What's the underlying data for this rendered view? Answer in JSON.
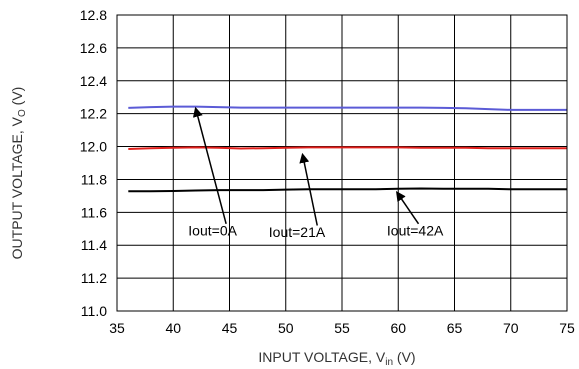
{
  "chart_data": {
    "type": "line",
    "xlabel": "INPUT VOLTAGE, V",
    "xlabel_sub": "in",
    "xlabel_unit": " (V)",
    "ylabel": "OUTPUT VOLTAGE, V",
    "ylabel_sub": "O",
    "ylabel_unit": " (V)",
    "xlim": [
      35,
      75
    ],
    "ylim": [
      11.0,
      12.8
    ],
    "xticks": [
      "35",
      "40",
      "45",
      "50",
      "55",
      "60",
      "65",
      "70",
      "75"
    ],
    "yticks": [
      "11.0",
      "11.2",
      "11.4",
      "11.6",
      "11.8",
      "12.0",
      "12.2",
      "12.4",
      "12.6",
      "12.8"
    ],
    "grid": true,
    "series": [
      {
        "name": "Iout=0A",
        "color": "#5b5bd6",
        "x": [
          36,
          38,
          40,
          42,
          44,
          46,
          48,
          50,
          52,
          54,
          56,
          58,
          60,
          62,
          64,
          66,
          68,
          70,
          72,
          75
        ],
        "y": [
          12.235,
          12.24,
          12.243,
          12.243,
          12.24,
          12.237,
          12.237,
          12.237,
          12.237,
          12.237,
          12.237,
          12.237,
          12.237,
          12.237,
          12.235,
          12.233,
          12.228,
          12.223,
          12.223,
          12.223
        ]
      },
      {
        "name": "Iout=21A",
        "color": "#e0201c",
        "x": [
          36,
          38,
          40,
          42,
          44,
          46,
          48,
          50,
          52,
          54,
          56,
          58,
          60,
          62,
          64,
          66,
          68,
          70,
          72,
          75
        ],
        "y": [
          11.985,
          11.99,
          11.993,
          11.995,
          11.993,
          11.988,
          11.99,
          11.993,
          11.995,
          11.995,
          11.995,
          11.995,
          11.995,
          11.993,
          11.993,
          11.993,
          11.99,
          11.99,
          11.99,
          11.99
        ]
      },
      {
        "name": "Iout=42A",
        "color": "#000000",
        "x": [
          36,
          38,
          40,
          42,
          44,
          46,
          48,
          50,
          52,
          54,
          56,
          58,
          60,
          62,
          64,
          66,
          68,
          70,
          72,
          75
        ],
        "y": [
          11.728,
          11.728,
          11.73,
          11.733,
          11.735,
          11.735,
          11.735,
          11.738,
          11.74,
          11.74,
          11.74,
          11.74,
          11.743,
          11.745,
          11.743,
          11.743,
          11.743,
          11.74,
          11.74,
          11.74
        ]
      }
    ],
    "annotations": [
      {
        "text": "Iout=0A",
        "text_x": 43.5,
        "text_y": 11.46,
        "arrow_from_x": 44.7,
        "arrow_from_y": 11.53,
        "arrow_to_x": 42.0,
        "arrow_to_y": 12.23
      },
      {
        "text": "Iout=21A",
        "text_x": 51.0,
        "text_y": 11.45,
        "arrow_from_x": 52.8,
        "arrow_from_y": 11.52,
        "arrow_to_x": 51.5,
        "arrow_to_y": 11.95
      },
      {
        "text": "Iout=42A",
        "text_x": 61.5,
        "text_y": 11.46,
        "arrow_from_x": 61.8,
        "arrow_from_y": 11.53,
        "arrow_to_x": 59.9,
        "arrow_to_y": 11.72
      }
    ]
  }
}
